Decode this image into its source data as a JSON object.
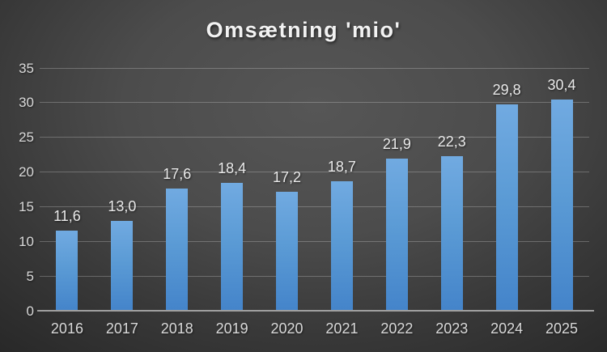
{
  "title": "Omsætning 'mio'",
  "chart_data": {
    "type": "bar",
    "title": "Omsætning 'mio'",
    "categories": [
      "2016",
      "2017",
      "2018",
      "2019",
      "2020",
      "2021",
      "2022",
      "2023",
      "2024",
      "2025"
    ],
    "values": [
      11.6,
      13.0,
      17.6,
      18.4,
      17.2,
      18.7,
      21.9,
      22.3,
      29.8,
      30.4
    ],
    "value_labels": [
      "11,6",
      "13,0",
      "17,6",
      "18,4",
      "17,2",
      "18,7",
      "21,9",
      "22,3",
      "29,8",
      "30,4"
    ],
    "xlabel": "",
    "ylabel": "",
    "ylim": [
      0,
      35
    ],
    "yticks": [
      0,
      5,
      10,
      15,
      20,
      25,
      30,
      35
    ],
    "grid": true,
    "legend": false
  },
  "colors": {
    "bar_top": "#71aae1",
    "bar_mid": "#5b9bd5",
    "bar_bottom": "#4484ca",
    "background_center": "#565656",
    "background_edge": "#262626",
    "gridline": "rgba(255,255,255,0.24)",
    "axis_line": "#a0a0a0",
    "tick_label": "#d9d9d9",
    "data_label": "#eaeaea",
    "title_color": "#f2f2f2"
  }
}
